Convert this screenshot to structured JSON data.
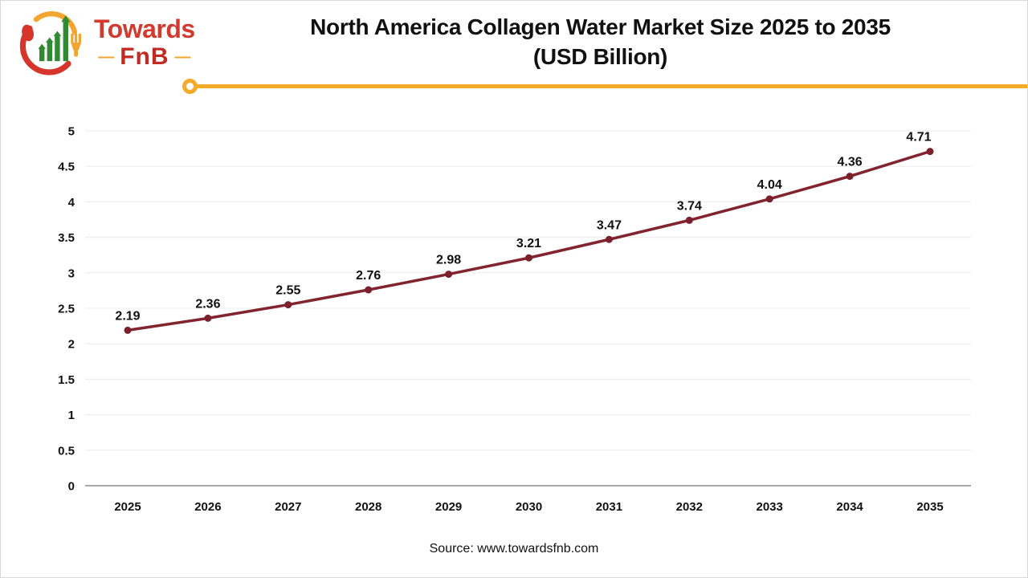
{
  "logo": {
    "brand_top": "Towards",
    "brand_bottom": "FnB",
    "dash": "—",
    "icon_name": "growth-chart-spoon-fork-logo",
    "colors": {
      "red": "#d23a30",
      "dark_red": "#c22b21",
      "amber": "#f2a52f",
      "green": "#2f8a32"
    }
  },
  "header": {
    "title_line1": "North America Collagen Water Market Size 2025 to 2035",
    "title_line2": "(USD Billion)"
  },
  "footer": {
    "source": "Source: www.towardsfnb.com"
  },
  "chart_data": {
    "type": "line",
    "title": "North America Collagen Water Market Size 2025 to 2035 (USD Billion)",
    "categories": [
      "2025",
      "2026",
      "2027",
      "2028",
      "2029",
      "2030",
      "2031",
      "2032",
      "2033",
      "2034",
      "2035"
    ],
    "values": [
      2.19,
      2.36,
      2.55,
      2.76,
      2.98,
      3.21,
      3.47,
      3.74,
      4.04,
      4.36,
      4.71
    ],
    "data_labels": [
      "2.19",
      "2.36",
      "2.55",
      "2.76",
      "2.98",
      "3.21",
      "3.47",
      "3.74",
      "4.04",
      "4.36",
      "4.71"
    ],
    "xlabel": "",
    "ylabel": "",
    "ylim": [
      0,
      5
    ],
    "ytick_step": 0.5,
    "yticks": [
      "0",
      "0.5",
      "1",
      "1.5",
      "2",
      "2.5",
      "3",
      "3.5",
      "4",
      "4.5",
      "5"
    ],
    "grid": true,
    "legend": "none",
    "line_color": "#822330",
    "marker_color": "#7a1f2b",
    "gridline_color": "#ebebeb",
    "axis_line_color": "#a9a9a9",
    "label_color": "#111111"
  }
}
